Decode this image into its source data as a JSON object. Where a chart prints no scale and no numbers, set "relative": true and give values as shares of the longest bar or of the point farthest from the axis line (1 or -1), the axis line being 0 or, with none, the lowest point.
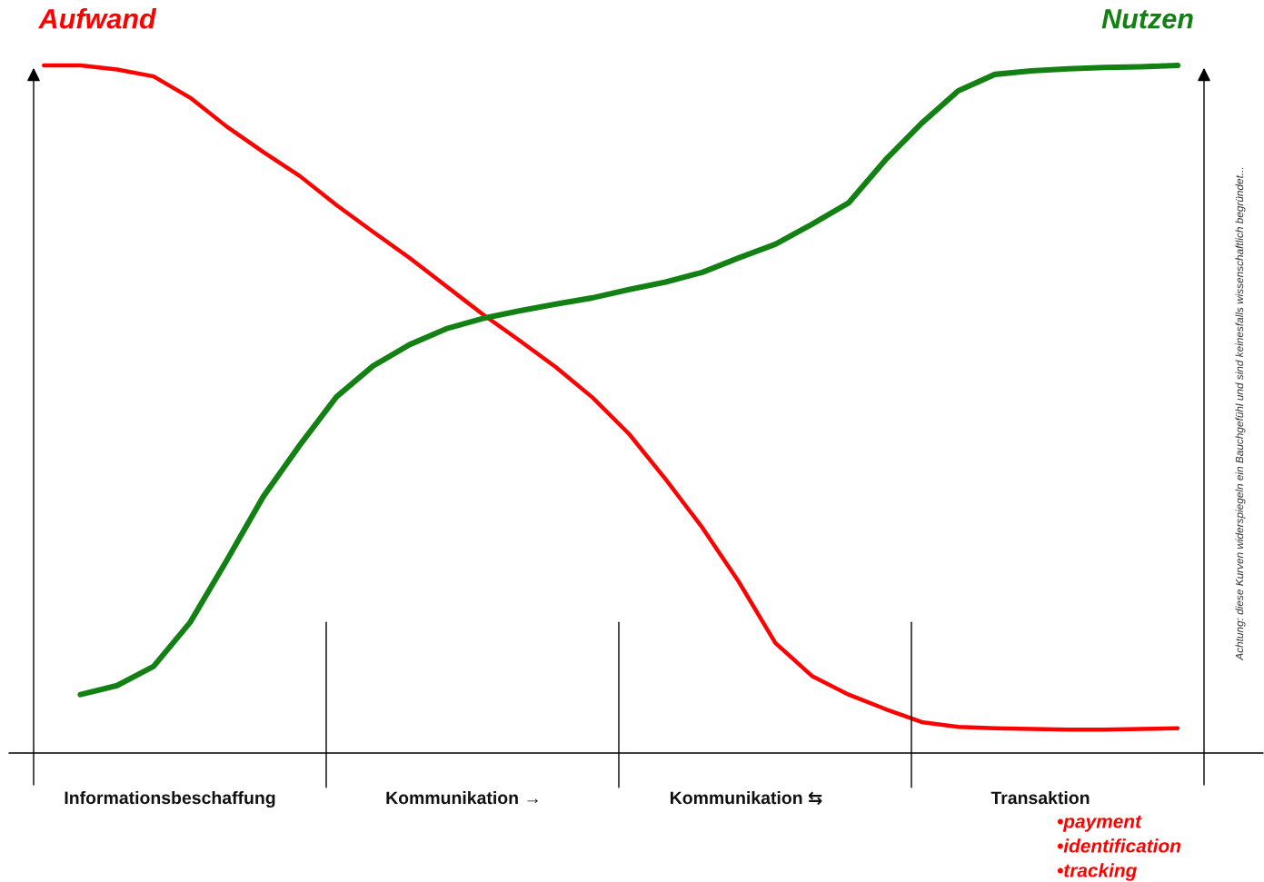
{
  "chart_data": {
    "type": "line",
    "relative": true,
    "grid": false,
    "legend": false,
    "marker": "none",
    "line_style": "solid",
    "categories": [
      null,
      null,
      null,
      null,
      null,
      null,
      null,
      null,
      null,
      null,
      null,
      null,
      null,
      null,
      null,
      null,
      null,
      null,
      null,
      null,
      null,
      null,
      null,
      null,
      null,
      null,
      null,
      null,
      null,
      null,
      null,
      null
    ],
    "series": [
      {
        "name": "Aufwand",
        "color": "#ff0000",
        "values": [
          1.0,
          1.0,
          0.994,
          0.984,
          0.953,
          0.911,
          0.874,
          0.839,
          0.797,
          0.758,
          0.72,
          0.679,
          0.638,
          0.6,
          0.561,
          0.517,
          0.464,
          0.398,
          0.328,
          0.249,
          0.16,
          0.112,
          0.085,
          0.064,
          0.045,
          0.038,
          0.036,
          0.035,
          0.034,
          0.034,
          0.035,
          0.036
        ]
      },
      {
        "name": "Nutzen",
        "color": "#138013",
        "values": [
          null,
          0.085,
          0.098,
          0.126,
          0.19,
          0.28,
          0.373,
          0.448,
          0.518,
          0.563,
          0.594,
          0.617,
          0.632,
          0.643,
          0.653,
          0.662,
          0.674,
          0.685,
          0.699,
          0.72,
          0.74,
          0.769,
          0.8,
          0.862,
          0.916,
          0.963,
          0.987,
          0.992,
          0.995,
          0.997,
          0.998,
          1.0
        ]
      }
    ],
    "annotations": [
      "Informationsbeschaffung",
      "Kommunikation →",
      "Kommunikation ⇆",
      "Transaktion",
      "Achtung: diese Kurven widerspiegeln ein Bauchgefühl und sind keinesfalls wissenschaftlich begründet...",
      "•payment",
      "•identification",
      "•tracking"
    ]
  }
}
